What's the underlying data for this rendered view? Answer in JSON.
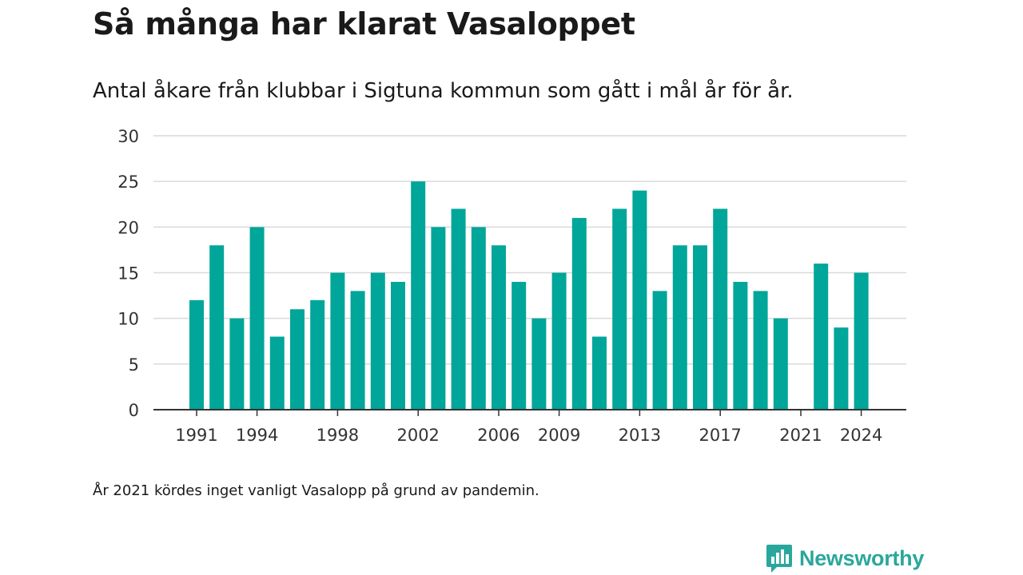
{
  "title": "Så många har klarat Vasaloppet",
  "subtitle": "Antal åkare från klubbar i Sigtuna kommun som gått i mål år för år.",
  "note": "År 2021 kördes inget vanligt Vasalopp på grund av pandemin.",
  "logo": {
    "name": "Newsworthy",
    "icon": "newsworthy-chart-bubble-icon"
  },
  "colors": {
    "bar": "#00a699",
    "grid": "#d9d9d9",
    "axis": "#333333",
    "brand": "#2aa79c"
  },
  "chart_data": {
    "type": "bar",
    "title": "Så många har klarat Vasaloppet",
    "subtitle": "Antal åkare från klubbar i Sigtuna kommun som gått i mål år för år.",
    "xlabel": "",
    "ylabel": "",
    "categories": [
      1991,
      1992,
      1993,
      1994,
      1995,
      1996,
      1997,
      1998,
      1999,
      2000,
      2001,
      2002,
      2003,
      2004,
      2005,
      2006,
      2007,
      2008,
      2009,
      2010,
      2011,
      2012,
      2013,
      2014,
      2015,
      2016,
      2017,
      2018,
      2019,
      2020,
      2021,
      2022,
      2023,
      2024
    ],
    "values": [
      12,
      18,
      10,
      20,
      8,
      11,
      12,
      15,
      13,
      15,
      14,
      25,
      20,
      22,
      20,
      18,
      14,
      10,
      15,
      21,
      8,
      22,
      24,
      13,
      18,
      18,
      22,
      14,
      13,
      10,
      null,
      16,
      9,
      15
    ],
    "x_tick_labels": [
      "1991",
      "1994",
      "1998",
      "2002",
      "2006",
      "2009",
      "2013",
      "2017",
      "2021",
      "2024"
    ],
    "y_ticks": [
      0,
      5,
      10,
      15,
      20,
      25,
      30
    ],
    "ylim": [
      0,
      30
    ],
    "grid": true,
    "legend": "none"
  }
}
